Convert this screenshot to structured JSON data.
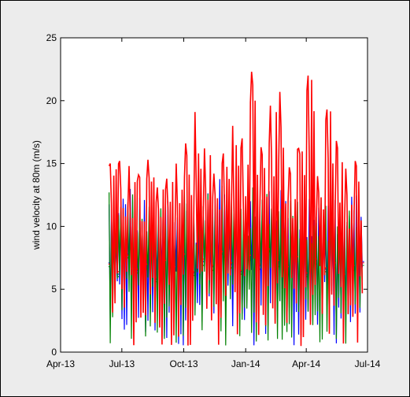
{
  "chart_data": {
    "type": "line",
    "title": "",
    "xlabel": "",
    "ylabel": "wind velocity at 80m (m/s)",
    "ylim": [
      0,
      25
    ],
    "xlim": [
      "2013-04-01",
      "2014-07-01"
    ],
    "x_ticks": [
      "Apr-13",
      "Jul-13",
      "Oct-13",
      "Jan-14",
      "Apr-14",
      "Jul-14"
    ],
    "y_ticks": [
      "0",
      "5",
      "10",
      "15",
      "20",
      "25"
    ],
    "grid": false,
    "legend": "none",
    "series": [
      {
        "color": "#0000ff",
        "x": [
          "2013-06-12",
          "2013-06-26",
          "2013-07-10",
          "2013-07-24",
          "2013-08-07",
          "2013-08-21",
          "2013-09-04",
          "2013-09-18",
          "2013-10-02",
          "2013-10-16",
          "2013-10-30",
          "2013-11-13",
          "2013-11-27",
          "2013-12-11",
          "2013-12-25",
          "2014-01-08",
          "2014-01-22",
          "2014-02-05",
          "2014-02-19",
          "2014-03-05",
          "2014-03-19",
          "2014-04-02",
          "2014-04-16",
          "2014-04-30",
          "2014-05-14",
          "2014-05-28",
          "2014-06-11",
          "2014-06-25"
        ],
        "y": [
          7.1,
          6.2,
          7.8,
          6.5,
          6.9,
          5.8,
          7.4,
          6.6,
          7.9,
          6.3,
          7.2,
          6.8,
          8.1,
          7.0,
          6.4,
          7.6,
          6.9,
          8.3,
          7.1,
          6.7,
          7.5,
          6.2,
          7.3,
          6.6,
          7.0,
          6.1,
          6.8,
          7.2
        ]
      },
      {
        "color": "#008000",
        "x": [
          "2013-06-12",
          "2013-06-26",
          "2013-07-10",
          "2013-07-24",
          "2013-08-07",
          "2013-08-21",
          "2013-09-04",
          "2013-09-18",
          "2013-10-02",
          "2013-10-16",
          "2013-10-30",
          "2013-11-13",
          "2013-11-27",
          "2013-12-11",
          "2013-12-25",
          "2014-01-08",
          "2014-01-22",
          "2014-02-05",
          "2014-02-19",
          "2014-03-05",
          "2014-03-19",
          "2014-04-02",
          "2014-04-16",
          "2014-04-30",
          "2014-05-14",
          "2014-05-28",
          "2014-06-11",
          "2014-06-25"
        ],
        "y": [
          6.8,
          6.0,
          7.5,
          6.3,
          6.6,
          5.6,
          7.1,
          6.4,
          7.6,
          6.1,
          6.9,
          6.5,
          7.8,
          6.7,
          6.2,
          7.3,
          6.6,
          8.0,
          6.8,
          6.5,
          7.2,
          6.0,
          7.0,
          6.4,
          6.7,
          5.9,
          6.5,
          6.9
        ]
      },
      {
        "color": "#ff0000",
        "x": [
          "2013-06-12",
          "2013-06-26",
          "2013-07-10",
          "2013-07-24",
          "2013-08-07",
          "2013-08-21",
          "2013-09-04",
          "2013-09-18",
          "2013-10-02",
          "2013-10-16",
          "2013-10-30",
          "2013-11-13",
          "2013-11-27",
          "2013-12-11",
          "2013-12-25",
          "2014-01-08",
          "2014-01-22",
          "2014-02-05",
          "2014-02-19",
          "2014-03-05",
          "2014-03-19",
          "2014-04-02",
          "2014-04-16",
          "2014-04-30",
          "2014-05-14",
          "2014-05-28",
          "2014-06-11",
          "2014-06-25"
        ],
        "y": [
          7.0,
          6.4,
          7.7,
          6.6,
          7.0,
          5.9,
          7.3,
          6.8,
          7.8,
          6.4,
          7.4,
          6.9,
          8.0,
          7.1,
          6.5,
          7.7,
          7.0,
          8.2,
          7.3,
          6.8,
          7.6,
          6.3,
          7.4,
          6.7,
          7.1,
          6.2,
          6.9,
          7.1
        ],
        "range_min": [
          0.4,
          0.3,
          0.5,
          0.3,
          0.6,
          0.4,
          0.3,
          0.5,
          0.4,
          0.3,
          0.5,
          0.4,
          0.3,
          0.6,
          0.4,
          0.3,
          0.5,
          0.4,
          0.3,
          0.5,
          0.4,
          0.3,
          0.5,
          0.4,
          0.3,
          0.5,
          0.4,
          0.6
        ],
        "range_max": [
          15.0,
          15.2,
          14.8,
          14.1,
          15.3,
          13.1,
          13.8,
          15.0,
          16.6,
          19.1,
          16.2,
          14.2,
          15.8,
          18.0,
          17.0,
          22.3,
          16.3,
          19.6,
          20.7,
          14.7,
          16.2,
          22.0,
          14.0,
          19.3,
          16.8,
          14.6,
          15.2,
          14.4
        ]
      }
    ]
  }
}
